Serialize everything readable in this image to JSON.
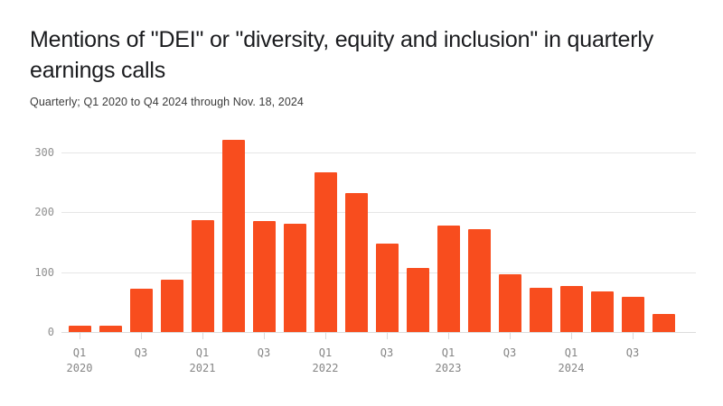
{
  "header": {
    "title_line1": "Mentions of \"DEI\" or \"diversity, equity and inclusion\" in quarterly",
    "title_line2": "earnings calls",
    "subtitle": "Quarterly; Q1 2020 to Q4 2024 through Nov. 18, 2024"
  },
  "chart_data": {
    "type": "bar",
    "title": "Mentions of \"DEI\" or \"diversity, equity and inclusion\" in quarterly earnings calls",
    "subtitle": "Quarterly; Q1 2020 to Q4 2024 through Nov. 18, 2024",
    "categories": [
      "Q1 2020",
      "Q2 2020",
      "Q3 2020",
      "Q4 2020",
      "Q1 2021",
      "Q2 2021",
      "Q3 2021",
      "Q4 2021",
      "Q1 2022",
      "Q2 2022",
      "Q3 2022",
      "Q4 2022",
      "Q1 2023",
      "Q2 2023",
      "Q3 2023",
      "Q4 2023",
      "Q1 2024",
      "Q2 2024",
      "Q3 2024",
      "Q4 2024"
    ],
    "values": [
      10,
      10,
      72,
      88,
      186,
      321,
      185,
      181,
      266,
      232,
      148,
      107,
      178,
      171,
      96,
      74,
      77,
      68,
      59,
      30
    ],
    "yticks": [
      0,
      100,
      200,
      300
    ],
    "ylim": [
      0,
      340
    ],
    "xticks": [
      {
        "i": 0,
        "label": "Q1",
        "year": "2020"
      },
      {
        "i": 2,
        "label": "Q3",
        "year": ""
      },
      {
        "i": 4,
        "label": "Q1",
        "year": "2021"
      },
      {
        "i": 6,
        "label": "Q3",
        "year": ""
      },
      {
        "i": 8,
        "label": "Q1",
        "year": "2022"
      },
      {
        "i": 10,
        "label": "Q3",
        "year": ""
      },
      {
        "i": 12,
        "label": "Q1",
        "year": "2023"
      },
      {
        "i": 14,
        "label": "Q3",
        "year": ""
      },
      {
        "i": 16,
        "label": "Q1",
        "year": "2024"
      },
      {
        "i": 18,
        "label": "Q3",
        "year": ""
      }
    ],
    "bar_color": "#F84D1E",
    "grid": true,
    "legend": false,
    "xlabel": "",
    "ylabel": ""
  }
}
